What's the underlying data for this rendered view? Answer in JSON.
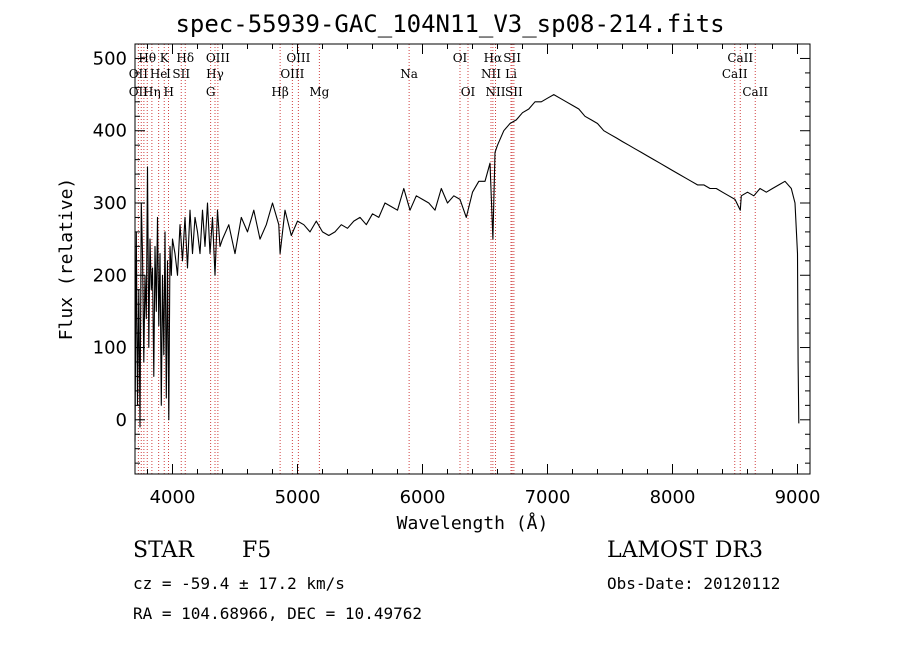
{
  "chart_data": {
    "type": "line",
    "title": "spec-55939-GAC_104N11_V3_sp08-214.fits",
    "xlabel": "Wavelength (Å)",
    "ylabel": "Flux (relative)",
    "xlim": [
      3700,
      9100
    ],
    "ylim": [
      -75,
      520
    ],
    "xticks": [
      4000,
      5000,
      6000,
      7000,
      8000,
      9000
    ],
    "yticks": [
      0,
      100,
      200,
      300,
      400,
      500
    ],
    "series": [
      {
        "name": "flux",
        "x": [
          3700,
          3710,
          3720,
          3730,
          3740,
          3750,
          3760,
          3770,
          3780,
          3790,
          3800,
          3810,
          3820,
          3830,
          3840,
          3850,
          3860,
          3870,
          3880,
          3890,
          3900,
          3910,
          3920,
          3930,
          3940,
          3950,
          3960,
          3970,
          3980,
          3990,
          4000,
          4020,
          4040,
          4060,
          4080,
          4100,
          4120,
          4140,
          4160,
          4180,
          4200,
          4220,
          4240,
          4260,
          4280,
          4300,
          4320,
          4340,
          4360,
          4380,
          4400,
          4450,
          4500,
          4550,
          4600,
          4650,
          4700,
          4750,
          4800,
          4850,
          4861,
          4900,
          4950,
          5000,
          5050,
          5100,
          5150,
          5200,
          5250,
          5300,
          5350,
          5400,
          5450,
          5500,
          5550,
          5600,
          5650,
          5700,
          5750,
          5800,
          5850,
          5900,
          5950,
          6000,
          6050,
          6100,
          6150,
          6200,
          6250,
          6300,
          6350,
          6400,
          6450,
          6500,
          6540,
          6563,
          6580,
          6600,
          6650,
          6700,
          6750,
          6800,
          6850,
          6900,
          6950,
          7000,
          7050,
          7100,
          7150,
          7200,
          7250,
          7300,
          7350,
          7400,
          7450,
          7500,
          7550,
          7600,
          7650,
          7700,
          7750,
          7800,
          7850,
          7900,
          7950,
          8000,
          8050,
          8100,
          8150,
          8200,
          8250,
          8300,
          8350,
          8400,
          8450,
          8500,
          8542,
          8550,
          8600,
          8650,
          8700,
          8750,
          8800,
          8850,
          8900,
          8950,
          8980,
          9000,
          9005,
          9010
        ],
        "y": [
          -30,
          260,
          20,
          180,
          -10,
          300,
          230,
          80,
          200,
          140,
          350,
          100,
          250,
          180,
          210,
          60,
          240,
          150,
          280,
          130,
          230,
          20,
          200,
          90,
          260,
          30,
          220,
          0,
          240,
          200,
          250,
          230,
          200,
          270,
          220,
          280,
          210,
          290,
          230,
          280,
          260,
          230,
          290,
          240,
          300,
          230,
          280,
          200,
          290,
          240,
          250,
          270,
          230,
          280,
          260,
          290,
          250,
          270,
          300,
          270,
          230,
          290,
          255,
          275,
          270,
          260,
          275,
          260,
          255,
          260,
          270,
          265,
          275,
          280,
          270,
          285,
          280,
          300,
          295,
          290,
          320,
          290,
          310,
          305,
          300,
          290,
          320,
          300,
          310,
          305,
          280,
          315,
          330,
          330,
          355,
          250,
          370,
          380,
          400,
          410,
          415,
          425,
          430,
          440,
          440,
          445,
          450,
          445,
          440,
          435,
          430,
          420,
          415,
          410,
          400,
          395,
          390,
          385,
          380,
          375,
          370,
          365,
          360,
          355,
          350,
          345,
          340,
          335,
          330,
          325,
          325,
          320,
          320,
          315,
          310,
          305,
          290,
          310,
          315,
          310,
          320,
          315,
          320,
          325,
          330,
          320,
          300,
          230,
          80,
          -5
        ]
      }
    ],
    "line_labels": [
      {
        "text": "Hθ",
        "x": 3798,
        "row": 1
      },
      {
        "text": "K",
        "x": 3934,
        "row": 1
      },
      {
        "text": "Hδ",
        "x": 4102,
        "row": 1
      },
      {
        "text": "OIII",
        "x": 4363,
        "row": 1
      },
      {
        "text": "OIII",
        "x": 5007,
        "row": 1
      },
      {
        "text": "OI",
        "x": 6300,
        "row": 1
      },
      {
        "text": "Hα",
        "x": 6563,
        "row": 1
      },
      {
        "text": "SII",
        "x": 6717,
        "row": 1
      },
      {
        "text": "CaII",
        "x": 8542,
        "row": 1
      },
      {
        "text": "OII",
        "x": 3727,
        "row": 2
      },
      {
        "text": "He",
        "x": 3889,
        "row": 2
      },
      {
        "text": "I",
        "x": 3968,
        "row": 2
      },
      {
        "text": "SII",
        "x": 4070,
        "row": 2
      },
      {
        "text": "Hγ",
        "x": 4340,
        "row": 2
      },
      {
        "text": "OIII",
        "x": 4959,
        "row": 2
      },
      {
        "text": "Na",
        "x": 5893,
        "row": 2
      },
      {
        "text": "NII",
        "x": 6548,
        "row": 2
      },
      {
        "text": "Li",
        "x": 6708,
        "row": 2
      },
      {
        "text": "CaII",
        "x": 8498,
        "row": 2
      },
      {
        "text": "OII",
        "x": 3727,
        "row": 3
      },
      {
        "text": "Hη",
        "x": 3835,
        "row": 3
      },
      {
        "text": "H",
        "x": 3970,
        "row": 3
      },
      {
        "text": "G",
        "x": 4305,
        "row": 3
      },
      {
        "text": "Hβ",
        "x": 4861,
        "row": 3
      },
      {
        "text": "Mg",
        "x": 5175,
        "row": 3
      },
      {
        "text": "OI",
        "x": 6364,
        "row": 3
      },
      {
        "text": "NII",
        "x": 6584,
        "row": 3
      },
      {
        "text": "SII",
        "x": 6731,
        "row": 3
      },
      {
        "text": "CaII",
        "x": 8662,
        "row": 3
      }
    ],
    "line_marks": [
      3727,
      3750,
      3771,
      3798,
      3835,
      3889,
      3934,
      3968,
      4070,
      4102,
      4305,
      4340,
      4363,
      4861,
      4959,
      5007,
      5175,
      5893,
      6300,
      6364,
      6548,
      6563,
      6584,
      6708,
      6717,
      6731,
      8498,
      8542,
      8662
    ]
  },
  "info": {
    "class": "STAR",
    "subclass": "F5",
    "survey": "LAMOST DR3",
    "cz": "cz = -59.4 ± 17.2 km/s",
    "obs_date": "Obs-Date: 20120112",
    "coords": "RA = 104.68966, DEC =  10.49762"
  },
  "colors": {
    "axis": "#000000",
    "marker": "#d04040"
  }
}
